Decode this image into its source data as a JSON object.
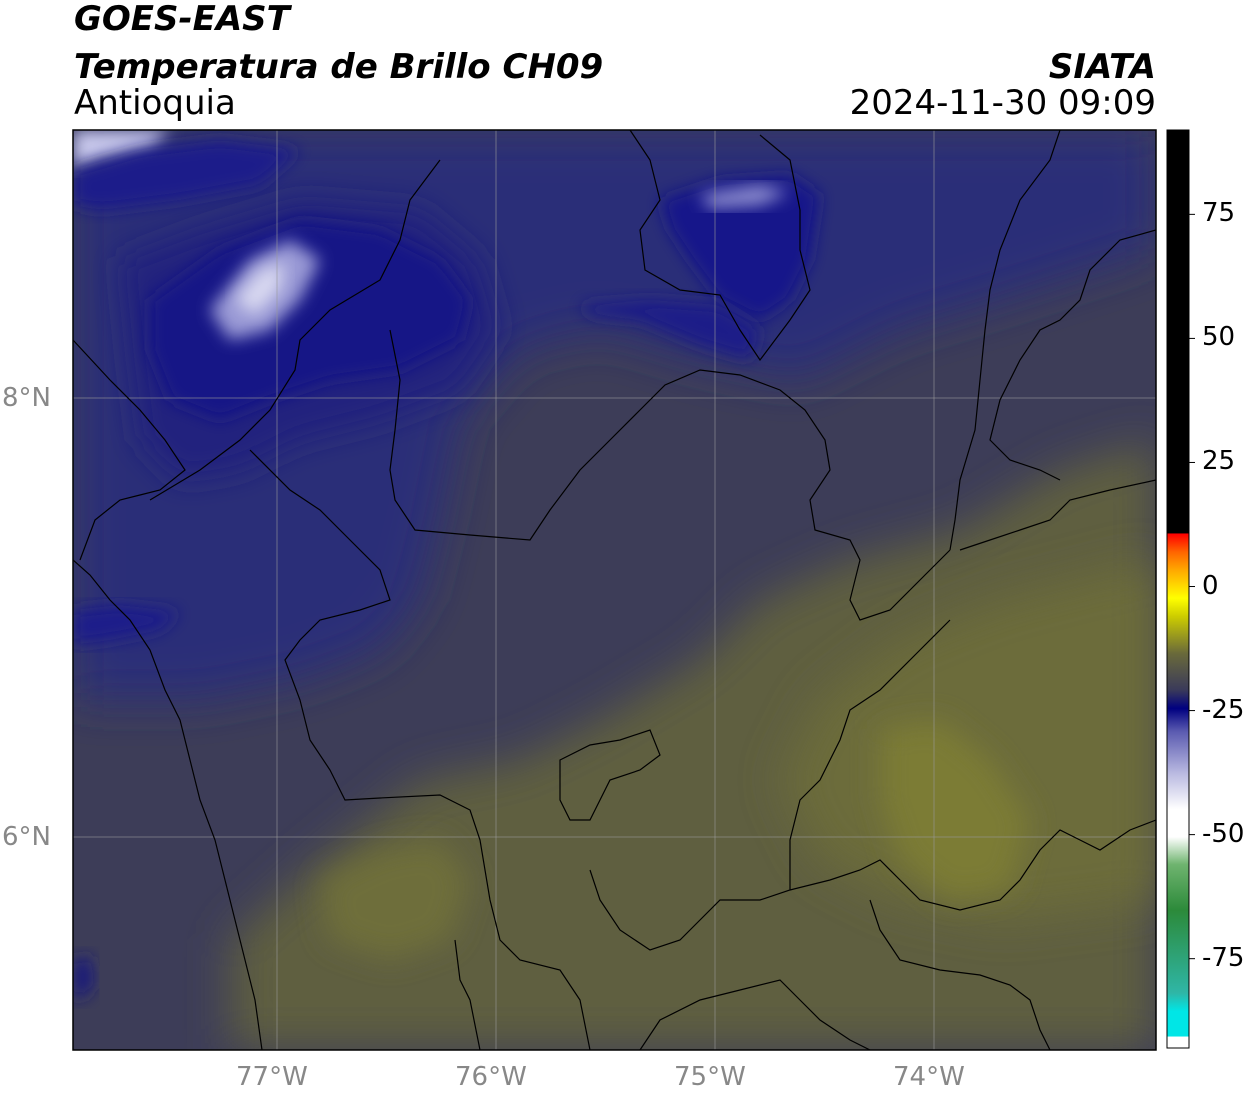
{
  "title": {
    "satellite": "GOES-EAST",
    "product": "Temperatura de Brillo CH09",
    "region": "Antioquia",
    "organization": "SIATA",
    "datetime": "2024-11-30 09:09"
  },
  "map": {
    "longitude_ticks": [
      "77°W",
      "76°W",
      "75°W",
      "74°W"
    ],
    "latitude_ticks": [
      "8°N",
      "6°N"
    ],
    "grid": true,
    "extent": {
      "lon_min": -77.94,
      "lon_max": -73.0,
      "lat_min": 5.03,
      "lat_max": 9.23
    }
  },
  "colorbar": {
    "units_hint": "",
    "tick_labels": [
      "75",
      "50",
      "25",
      "0",
      "-25",
      "-50",
      "-75"
    ],
    "tick_values": [
      75,
      50,
      25,
      0,
      -25,
      -50,
      -75
    ],
    "range": [
      -93,
      92
    ],
    "colors": {
      "hot": "#000000",
      "red": "#ff0000",
      "yellow": "#ffff00",
      "olive": "#6b6b3a",
      "gray": "#4a4a52",
      "navy": "#000080",
      "white": "#ffffff",
      "green": "#2f8a2f",
      "cyan": "#00e0e0"
    }
  },
  "field_colors": {
    "background": "#3b3b5a",
    "deep_cloud": "#1a1a8a",
    "cold_top": "#c8c8e8",
    "warm_region": "#6a6a3a",
    "warmest": "#7e7e34",
    "boundaries": "#000000",
    "gridlines": "#aaaaaa"
  }
}
